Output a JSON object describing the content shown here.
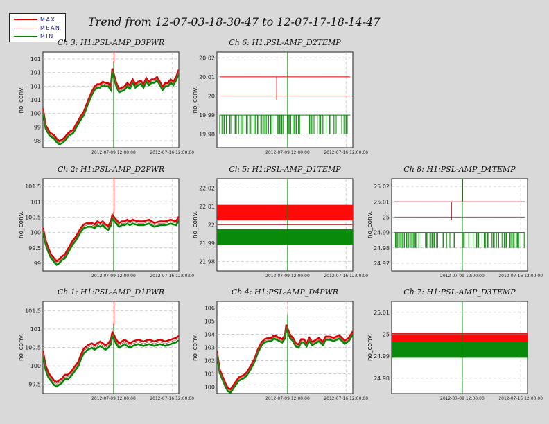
{
  "title": "Trend from 12-07-03-18-30-47 to 12-07-17-18-14-47",
  "legend": [
    {
      "label": "MAX",
      "color": "#e00000"
    },
    {
      "label": "MEAN",
      "color": "#b05050"
    },
    {
      "label": "MIN",
      "color": "#008800"
    }
  ],
  "colors": {
    "max": "#e00000",
    "mean": "#b05050",
    "min": "#008800",
    "marker": "#008800",
    "grid": "#bcbcbc"
  },
  "chart_data": [
    {
      "type": "line",
      "title": "Ch 3: H1:PSL-AMP_D3PWR",
      "ylabel": "no_conv.",
      "xticks": [
        "2012-07-09 12:00:00",
        "2012-07-16 12:00:00"
      ],
      "yticks": [
        "98",
        "99",
        "100",
        "101",
        "101",
        "101",
        "101"
      ],
      "ylim": [
        97.9,
        101.85
      ],
      "style": "trend",
      "spike": 101.4,
      "x": [
        0,
        0.02,
        0.05,
        0.08,
        0.1,
        0.12,
        0.14,
        0.16,
        0.18,
        0.2,
        0.22,
        0.25,
        0.28,
        0.3,
        0.33,
        0.36,
        0.38,
        0.4,
        0.42,
        0.44,
        0.46,
        0.48,
        0.5,
        0.51,
        0.52,
        0.54,
        0.56,
        0.58,
        0.6,
        0.62,
        0.64,
        0.66,
        0.68,
        0.7,
        0.72,
        0.74,
        0.76,
        0.78,
        0.8,
        0.82,
        0.84,
        0.86,
        0.88,
        0.9,
        0.92,
        0.94,
        0.96,
        0.98,
        1
      ],
      "mean": [
        99.45,
        98.75,
        98.45,
        98.35,
        98.2,
        98.1,
        98.15,
        98.25,
        98.4,
        98.5,
        98.55,
        98.85,
        99.15,
        99.3,
        99.75,
        100.15,
        100.35,
        100.45,
        100.45,
        100.55,
        100.5,
        100.5,
        100.35,
        101.1,
        100.9,
        100.5,
        100.25,
        100.3,
        100.35,
        100.5,
        100.4,
        100.65,
        100.45,
        100.55,
        100.6,
        100.45,
        100.7,
        100.55,
        100.65,
        100.65,
        100.75,
        100.55,
        100.35,
        100.5,
        100.5,
        100.65,
        100.55,
        100.75,
        101.05
      ],
      "band": 0.07
    },
    {
      "type": "line",
      "title": "Ch 6: H1:PSL-AMP_D2TEMP",
      "ylabel": "no_conv.",
      "xticks": [
        "2012-07-09 12:00:00",
        "2012-07-16 12:00:00"
      ],
      "yticks": [
        "19.98",
        "19.99",
        "20",
        "20.01",
        "20.02"
      ],
      "ylim": [
        19.973,
        20.023
      ],
      "style": "stepdigital",
      "max": 20.01,
      "mean": 20,
      "minTop": 19.99,
      "minBottom": 19.98,
      "spikeLow": 20.0,
      "spikeHigh": 20.01
    },
    {
      "type": "line",
      "title": "Ch 2: H1:PSL-AMP_D2PWR",
      "ylabel": "no_conv.",
      "xticks": [
        "2012-07-09 12:00:00",
        "2012-07-16 12:00:00"
      ],
      "yticks": [
        "99",
        "99.5",
        "100",
        "100.5",
        "101",
        "101.5"
      ],
      "ylim": [
        98.95,
        101.85
      ],
      "style": "trend",
      "spike": 100.75,
      "x": [
        0,
        0.02,
        0.04,
        0.06,
        0.08,
        0.1,
        0.12,
        0.14,
        0.16,
        0.18,
        0.2,
        0.22,
        0.24,
        0.26,
        0.28,
        0.3,
        0.33,
        0.36,
        0.38,
        0.4,
        0.42,
        0.44,
        0.46,
        0.48,
        0.5,
        0.51,
        0.52,
        0.54,
        0.56,
        0.58,
        0.6,
        0.62,
        0.64,
        0.66,
        0.7,
        0.74,
        0.78,
        0.82,
        0.86,
        0.9,
        0.94,
        0.98,
        1
      ],
      "mean": [
        100.25,
        99.85,
        99.6,
        99.4,
        99.3,
        99.2,
        99.25,
        99.35,
        99.4,
        99.55,
        99.7,
        99.85,
        99.95,
        100.1,
        100.25,
        100.35,
        100.4,
        100.4,
        100.35,
        100.45,
        100.4,
        100.45,
        100.35,
        100.3,
        100.45,
        100.65,
        100.6,
        100.5,
        100.4,
        100.45,
        100.45,
        100.5,
        100.45,
        100.5,
        100.45,
        100.45,
        100.5,
        100.4,
        100.45,
        100.45,
        100.5,
        100.45,
        100.6
      ],
      "band": 0.06
    },
    {
      "type": "line",
      "title": "Ch 5: H1:PSL-AMP_D1TEMP",
      "ylabel": "no_conv.",
      "xticks": [
        "2012-07-09 12:00:00",
        "2012-07-16 12:00:00"
      ],
      "yticks": [
        "21.98",
        "21.99",
        "22",
        "22.01",
        "22.02"
      ],
      "ylim": [
        21.975,
        22.025
      ],
      "style": "dualband",
      "max": 22.01,
      "mean": 22,
      "min": 21.99
    },
    {
      "type": "line",
      "title": "Ch 8: H1:PSL-AMP_D4TEMP",
      "ylabel": "no_conv.",
      "xticks": [
        "2012-07-09 12:00:00",
        "2012-07-16 12:00:00"
      ],
      "yticks": [
        "24.97",
        "24.98",
        "24.99",
        "25",
        "25.01",
        "25.02"
      ],
      "ylim": [
        24.965,
        25.025
      ],
      "style": "stepdigital",
      "max": 25.01,
      "mean": 25,
      "minTop": 24.99,
      "minBottom": 24.98,
      "spikeLow": 25.0,
      "spikeHigh": 25.01
    },
    {
      "type": "line",
      "title": "Ch 1: H1:PSL-AMP_D1PWR",
      "ylabel": "no_conv.",
      "xticks": [
        "2012-07-09 12:00:00",
        "2012-07-16 12:00:00"
      ],
      "yticks": [
        "99.5",
        "100",
        "100.5",
        "101",
        "101.5"
      ],
      "ylim": [
        99.35,
        101.85
      ],
      "style": "trend",
      "spike": 101.2,
      "x": [
        0,
        0.02,
        0.04,
        0.06,
        0.08,
        0.1,
        0.12,
        0.14,
        0.16,
        0.18,
        0.2,
        0.22,
        0.24,
        0.26,
        0.28,
        0.3,
        0.33,
        0.36,
        0.38,
        0.4,
        0.42,
        0.44,
        0.46,
        0.48,
        0.5,
        0.51,
        0.52,
        0.54,
        0.56,
        0.58,
        0.6,
        0.62,
        0.64,
        0.66,
        0.7,
        0.74,
        0.78,
        0.82,
        0.86,
        0.9,
        0.94,
        0.98,
        1
      ],
      "mean": [
        100.45,
        100.05,
        99.85,
        99.75,
        99.65,
        99.6,
        99.65,
        99.7,
        99.8,
        99.8,
        99.85,
        99.95,
        100.05,
        100.15,
        100.35,
        100.5,
        100.6,
        100.65,
        100.6,
        100.65,
        100.7,
        100.65,
        100.6,
        100.65,
        100.75,
        100.95,
        100.9,
        100.75,
        100.65,
        100.7,
        100.75,
        100.7,
        100.65,
        100.7,
        100.75,
        100.7,
        100.75,
        100.7,
        100.75,
        100.7,
        100.75,
        100.8,
        100.85
      ],
      "band": 0.06
    },
    {
      "type": "line",
      "title": "Ch 4: H1:PSL-AMP_D4PWR",
      "ylabel": "no_conv.",
      "xticks": [
        "2012-07-09 12:00:00",
        "2012-07-16 12:00:00"
      ],
      "yticks": [
        "100",
        "101",
        "102",
        "103",
        "104",
        "105",
        "106"
      ],
      "ylim": [
        99.3,
        106.3
      ],
      "style": "trend",
      "spike": 105.2,
      "x": [
        0,
        0.02,
        0.04,
        0.06,
        0.08,
        0.1,
        0.12,
        0.14,
        0.16,
        0.18,
        0.2,
        0.22,
        0.25,
        0.28,
        0.3,
        0.33,
        0.35,
        0.38,
        0.4,
        0.42,
        0.44,
        0.46,
        0.48,
        0.5,
        0.51,
        0.52,
        0.54,
        0.56,
        0.58,
        0.6,
        0.62,
        0.64,
        0.66,
        0.68,
        0.7,
        0.72,
        0.75,
        0.78,
        0.8,
        0.83,
        0.86,
        0.9,
        0.94,
        0.97,
        1
      ],
      "mean": [
        102.4,
        101.0,
        100.5,
        100.0,
        99.6,
        99.5,
        99.8,
        100.1,
        100.4,
        100.5,
        100.6,
        100.8,
        101.3,
        101.9,
        102.5,
        103.1,
        103.3,
        103.4,
        103.4,
        103.6,
        103.5,
        103.4,
        103.3,
        103.6,
        104.4,
        104.1,
        103.6,
        103.4,
        103.0,
        102.9,
        103.3,
        103.3,
        103.0,
        103.4,
        103.1,
        103.2,
        103.4,
        103.1,
        103.5,
        103.5,
        103.4,
        103.6,
        103.2,
        103.4,
        103.9
      ],
      "band": 0.12
    },
    {
      "type": "line",
      "title": "Ch 7: H1:PSL-AMP_D3TEMP",
      "ylabel": "no_conv.",
      "xticks": [
        "2012-07-09 12:00:00",
        "2012-07-16 12:00:00"
      ],
      "yticks": [
        "24.98",
        "24.99",
        "25",
        "25.01"
      ],
      "ylim": [
        24.973,
        25.015
      ],
      "style": "dualband",
      "max": 25.0,
      "mean": 25,
      "min": 24.99
    }
  ]
}
